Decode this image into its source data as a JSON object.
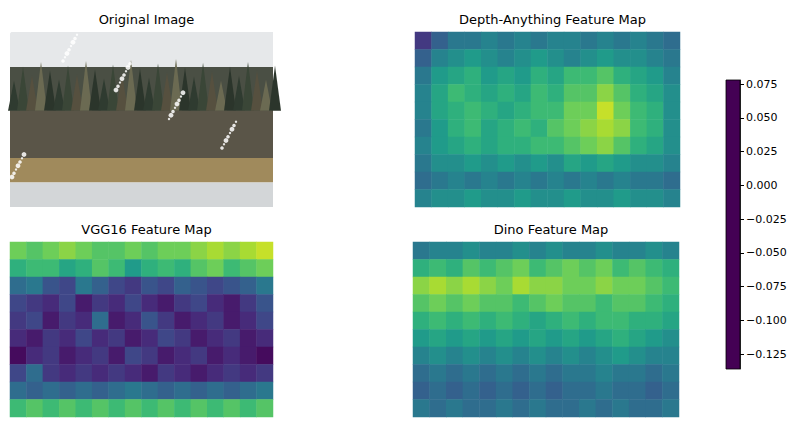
{
  "chart_data": [
    {
      "type": "image",
      "title": "Original Image"
    },
    {
      "type": "heatmap",
      "title": "Depth-Anything Feature Map",
      "tick_labels": false,
      "cells": [
        [
          -0.1,
          -0.07,
          -0.05,
          -0.05,
          -0.04,
          -0.05,
          -0.04,
          -0.05,
          -0.04,
          -0.04,
          -0.05,
          -0.04,
          -0.05,
          -0.04,
          -0.05,
          -0.06
        ],
        [
          -0.07,
          -0.04,
          -0.03,
          -0.02,
          -0.03,
          -0.04,
          -0.03,
          -0.02,
          -0.03,
          -0.04,
          -0.03,
          -0.02,
          -0.03,
          -0.03,
          -0.04,
          -0.05
        ],
        [
          -0.05,
          -0.02,
          -0.01,
          0.0,
          -0.02,
          -0.01,
          -0.02,
          0.0,
          -0.01,
          0.01,
          0.01,
          0.02,
          0.0,
          -0.01,
          -0.02,
          -0.04
        ],
        [
          -0.04,
          -0.01,
          0.01,
          0.0,
          -0.01,
          0.0,
          -0.01,
          0.01,
          0.0,
          0.02,
          0.02,
          0.04,
          0.02,
          0.0,
          -0.01,
          -0.03
        ],
        [
          -0.04,
          -0.01,
          0.0,
          0.01,
          0.0,
          -0.01,
          0.0,
          0.01,
          0.01,
          0.03,
          0.03,
          0.06,
          0.03,
          0.01,
          0.0,
          -0.03
        ],
        [
          -0.05,
          -0.02,
          0.0,
          0.01,
          -0.01,
          0.0,
          0.01,
          0.0,
          0.02,
          0.03,
          0.04,
          0.05,
          0.04,
          0.01,
          0.0,
          -0.03
        ],
        [
          -0.04,
          -0.02,
          -0.01,
          0.0,
          -0.01,
          0.0,
          0.0,
          0.01,
          0.01,
          0.02,
          0.03,
          0.04,
          0.02,
          0.0,
          -0.01,
          -0.03
        ],
        [
          -0.05,
          -0.03,
          -0.03,
          -0.02,
          -0.03,
          -0.02,
          -0.03,
          -0.02,
          -0.03,
          -0.01,
          -0.02,
          -0.01,
          -0.02,
          -0.03,
          -0.03,
          -0.04
        ],
        [
          -0.06,
          -0.05,
          -0.04,
          -0.05,
          -0.04,
          -0.05,
          -0.04,
          -0.05,
          -0.04,
          -0.05,
          -0.04,
          -0.05,
          -0.04,
          -0.05,
          -0.05,
          -0.06
        ],
        [
          -0.04,
          -0.03,
          -0.03,
          -0.02,
          -0.03,
          -0.03,
          -0.02,
          -0.03,
          -0.03,
          -0.02,
          -0.03,
          -0.03,
          -0.02,
          -0.03,
          -0.03,
          -0.04
        ]
      ]
    },
    {
      "type": "heatmap",
      "title": "VGG16 Feature Map",
      "tick_labels": false,
      "cells": [
        [
          0.03,
          0.02,
          0.03,
          0.04,
          0.03,
          0.02,
          0.02,
          0.03,
          0.02,
          0.03,
          0.03,
          0.04,
          0.05,
          0.04,
          0.05,
          0.06
        ],
        [
          0.0,
          0.01,
          0.01,
          -0.01,
          0.0,
          0.02,
          0.01,
          -0.02,
          0.0,
          0.01,
          0.0,
          0.02,
          0.03,
          0.01,
          0.02,
          0.03
        ],
        [
          -0.06,
          -0.05,
          -0.08,
          -0.09,
          -0.05,
          -0.07,
          -0.09,
          -0.1,
          -0.08,
          -0.09,
          -0.07,
          -0.08,
          -0.09,
          -0.08,
          -0.07,
          -0.05
        ],
        [
          -0.09,
          -0.1,
          -0.11,
          -0.09,
          -0.12,
          -0.1,
          -0.11,
          -0.09,
          -0.11,
          -0.12,
          -0.1,
          -0.09,
          -0.11,
          -0.12,
          -0.1,
          -0.08
        ],
        [
          -0.1,
          -0.09,
          -0.12,
          -0.1,
          -0.11,
          -0.06,
          -0.12,
          -0.11,
          -0.08,
          -0.1,
          -0.12,
          -0.11,
          -0.1,
          -0.12,
          -0.11,
          -0.09
        ],
        [
          -0.11,
          -0.12,
          -0.1,
          -0.11,
          -0.09,
          -0.11,
          -0.1,
          -0.12,
          -0.11,
          -0.09,
          -0.1,
          -0.12,
          -0.11,
          -0.1,
          -0.12,
          -0.11
        ],
        [
          -0.13,
          -0.11,
          -0.1,
          -0.12,
          -0.11,
          -0.1,
          -0.12,
          -0.09,
          -0.1,
          -0.12,
          -0.11,
          -0.1,
          -0.12,
          -0.11,
          -0.12,
          -0.13
        ],
        [
          -0.09,
          -0.06,
          -0.1,
          -0.11,
          -0.1,
          -0.11,
          -0.1,
          -0.11,
          -0.12,
          -0.1,
          -0.11,
          -0.12,
          -0.11,
          -0.1,
          -0.11,
          -0.1
        ],
        [
          -0.06,
          -0.07,
          -0.06,
          -0.07,
          -0.06,
          -0.07,
          -0.06,
          -0.05,
          -0.06,
          -0.07,
          -0.06,
          -0.07,
          -0.06,
          -0.07,
          -0.06,
          -0.05
        ],
        [
          0.01,
          0.02,
          0.01,
          0.02,
          0.01,
          0.02,
          0.01,
          0.02,
          0.01,
          0.02,
          0.01,
          0.02,
          0.01,
          0.02,
          0.01,
          0.02
        ]
      ]
    },
    {
      "type": "heatmap",
      "title": "Dino Feature Map",
      "tick_labels": false,
      "cells": [
        [
          -0.05,
          -0.04,
          -0.04,
          -0.03,
          -0.04,
          -0.04,
          -0.03,
          -0.04,
          -0.03,
          -0.04,
          -0.04,
          -0.03,
          -0.04,
          -0.04,
          -0.03,
          -0.04
        ],
        [
          0.0,
          0.01,
          0.0,
          0.02,
          0.01,
          0.02,
          0.03,
          0.01,
          0.02,
          0.03,
          0.02,
          0.03,
          0.01,
          0.02,
          0.01,
          0.0
        ],
        [
          0.04,
          0.05,
          0.04,
          0.05,
          0.04,
          0.03,
          0.05,
          0.04,
          0.04,
          0.03,
          0.03,
          0.04,
          0.03,
          0.03,
          0.02,
          0.01
        ],
        [
          0.02,
          0.03,
          0.02,
          0.03,
          0.02,
          0.02,
          0.01,
          0.02,
          0.03,
          0.02,
          0.02,
          0.01,
          0.02,
          0.02,
          0.01,
          0.0
        ],
        [
          0.0,
          0.01,
          0.0,
          0.01,
          0.0,
          0.01,
          0.0,
          -0.01,
          0.0,
          0.01,
          0.0,
          0.01,
          0.01,
          0.0,
          0.0,
          -0.01
        ],
        [
          -0.02,
          -0.01,
          -0.02,
          -0.01,
          -0.02,
          -0.01,
          -0.02,
          -0.01,
          -0.02,
          -0.01,
          -0.02,
          -0.01,
          0.0,
          -0.01,
          -0.02,
          -0.03
        ],
        [
          -0.04,
          -0.03,
          -0.04,
          -0.03,
          -0.04,
          -0.03,
          -0.04,
          -0.03,
          -0.04,
          -0.03,
          -0.04,
          -0.03,
          -0.02,
          -0.03,
          -0.04,
          -0.04
        ],
        [
          -0.06,
          -0.05,
          -0.06,
          -0.05,
          -0.06,
          -0.05,
          -0.06,
          -0.05,
          -0.06,
          -0.05,
          -0.05,
          -0.04,
          -0.05,
          -0.05,
          -0.06,
          -0.05
        ],
        [
          -0.07,
          -0.06,
          -0.07,
          -0.06,
          -0.07,
          -0.06,
          -0.07,
          -0.06,
          -0.07,
          -0.06,
          -0.06,
          -0.05,
          -0.06,
          -0.06,
          -0.07,
          -0.06
        ],
        [
          -0.05,
          -0.06,
          -0.05,
          -0.06,
          -0.06,
          -0.05,
          -0.06,
          -0.05,
          -0.06,
          -0.06,
          -0.05,
          -0.06,
          -0.05,
          -0.06,
          -0.06,
          -0.05
        ]
      ]
    }
  ],
  "colorbar": {
    "lim": [
      -0.136,
      0.078
    ],
    "ticks": [
      {
        "value": 0.075,
        "label": "0.075"
      },
      {
        "value": 0.05,
        "label": "0.050"
      },
      {
        "value": 0.025,
        "label": "0.025"
      },
      {
        "value": 0,
        "label": "0.000"
      },
      {
        "value": -0.025,
        "label": "−0.025"
      },
      {
        "value": -0.05,
        "label": "−0.050"
      },
      {
        "value": -0.075,
        "label": "−0.075"
      },
      {
        "value": -0.1,
        "label": "−0.100"
      },
      {
        "value": -0.125,
        "label": "−0.125"
      }
    ]
  }
}
